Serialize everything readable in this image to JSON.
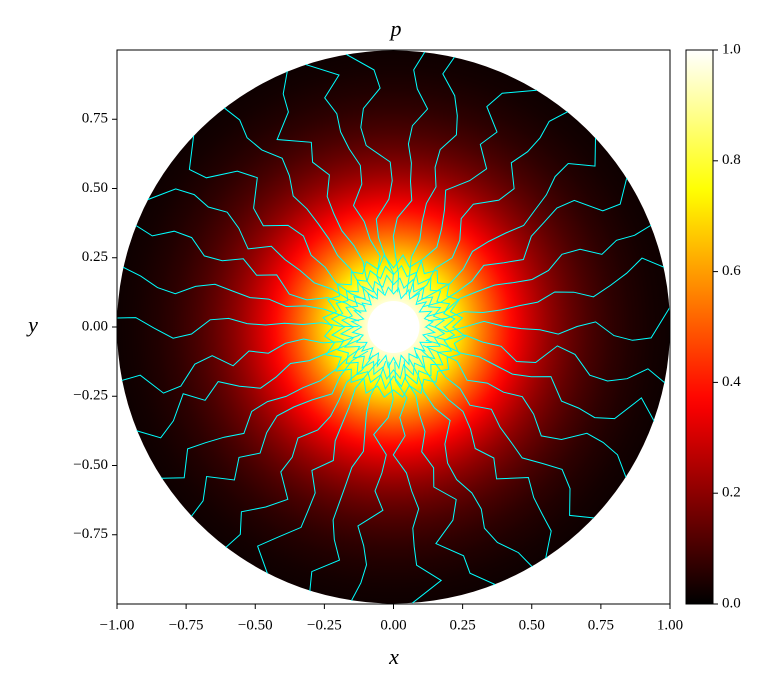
{
  "chart_data": {
    "type": "heatmap",
    "title": "p",
    "xlabel": "x",
    "ylabel": "y",
    "colormap": "hot",
    "contour_color": "#00ffff",
    "xlim": [
      -1,
      1
    ],
    "ylim": [
      -1,
      1
    ],
    "xticks": [
      {
        "value": -1,
        "label": "−1.00"
      },
      {
        "value": -0.75,
        "label": "−0.75"
      },
      {
        "value": -0.5,
        "label": "−0.50"
      },
      {
        "value": -0.25,
        "label": "−0.25"
      },
      {
        "value": 0,
        "label": "0.00"
      },
      {
        "value": 0.25,
        "label": "0.25"
      },
      {
        "value": 0.5,
        "label": "0.50"
      },
      {
        "value": 0.75,
        "label": "0.75"
      },
      {
        "value": 1,
        "label": "1.00"
      }
    ],
    "yticks": [
      {
        "value": -0.75,
        "label": "−0.75"
      },
      {
        "value": -0.5,
        "label": "−0.50"
      },
      {
        "value": -0.25,
        "label": "−0.25"
      },
      {
        "value": 0,
        "label": "0.00"
      },
      {
        "value": 0.25,
        "label": "0.25"
      },
      {
        "value": 0.5,
        "label": "0.50"
      },
      {
        "value": 0.75,
        "label": "0.75"
      }
    ],
    "clim": [
      0,
      1
    ],
    "cticks": [
      {
        "value": 0,
        "label": "0.0"
      },
      0.2,
      0.4,
      0.6,
      0.8,
      {
        "value": 1,
        "label": "1.0"
      }
    ]
  }
}
